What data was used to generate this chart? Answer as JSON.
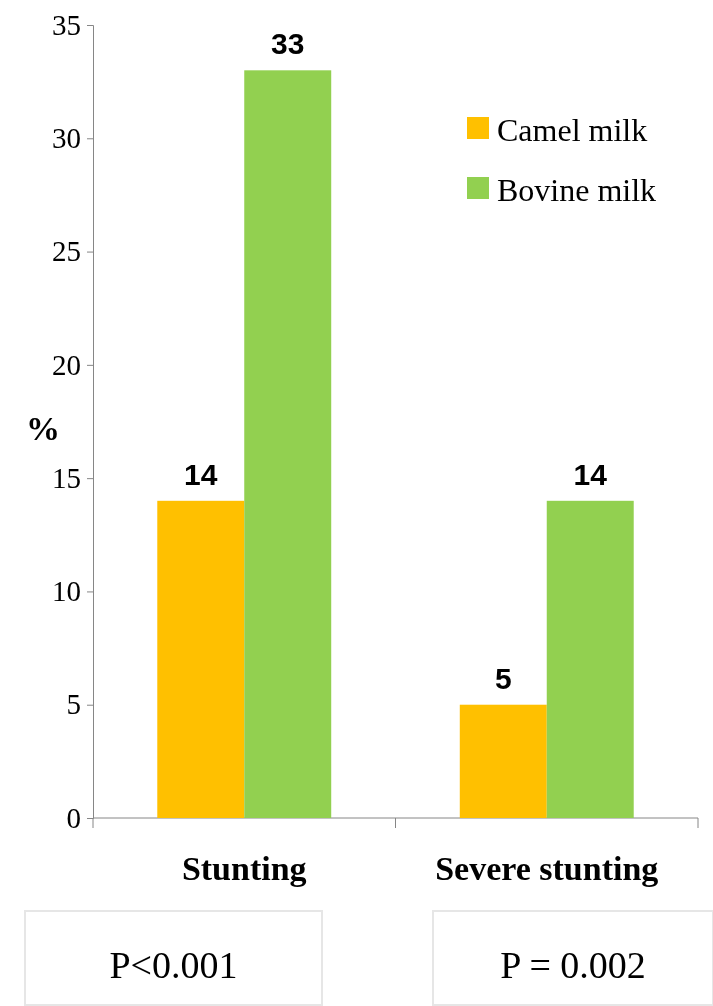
{
  "chart_data": {
    "type": "bar",
    "ylabel": "%",
    "categories": [
      "Stunting",
      "Severe stunting"
    ],
    "series": [
      {
        "name": "Camel milk",
        "color": "#ffc000",
        "values": [
          14,
          5
        ]
      },
      {
        "name": "Bovine milk",
        "color": "#92d050",
        "values": [
          33,
          14
        ]
      }
    ],
    "ylim": [
      0,
      35
    ],
    "yticks": [
      0,
      5,
      10,
      15,
      20,
      25,
      30,
      35
    ],
    "grid": false,
    "legend": "top right",
    "data_labels": true,
    "annotations": [
      "P<0.001",
      "P = 0.002"
    ]
  }
}
